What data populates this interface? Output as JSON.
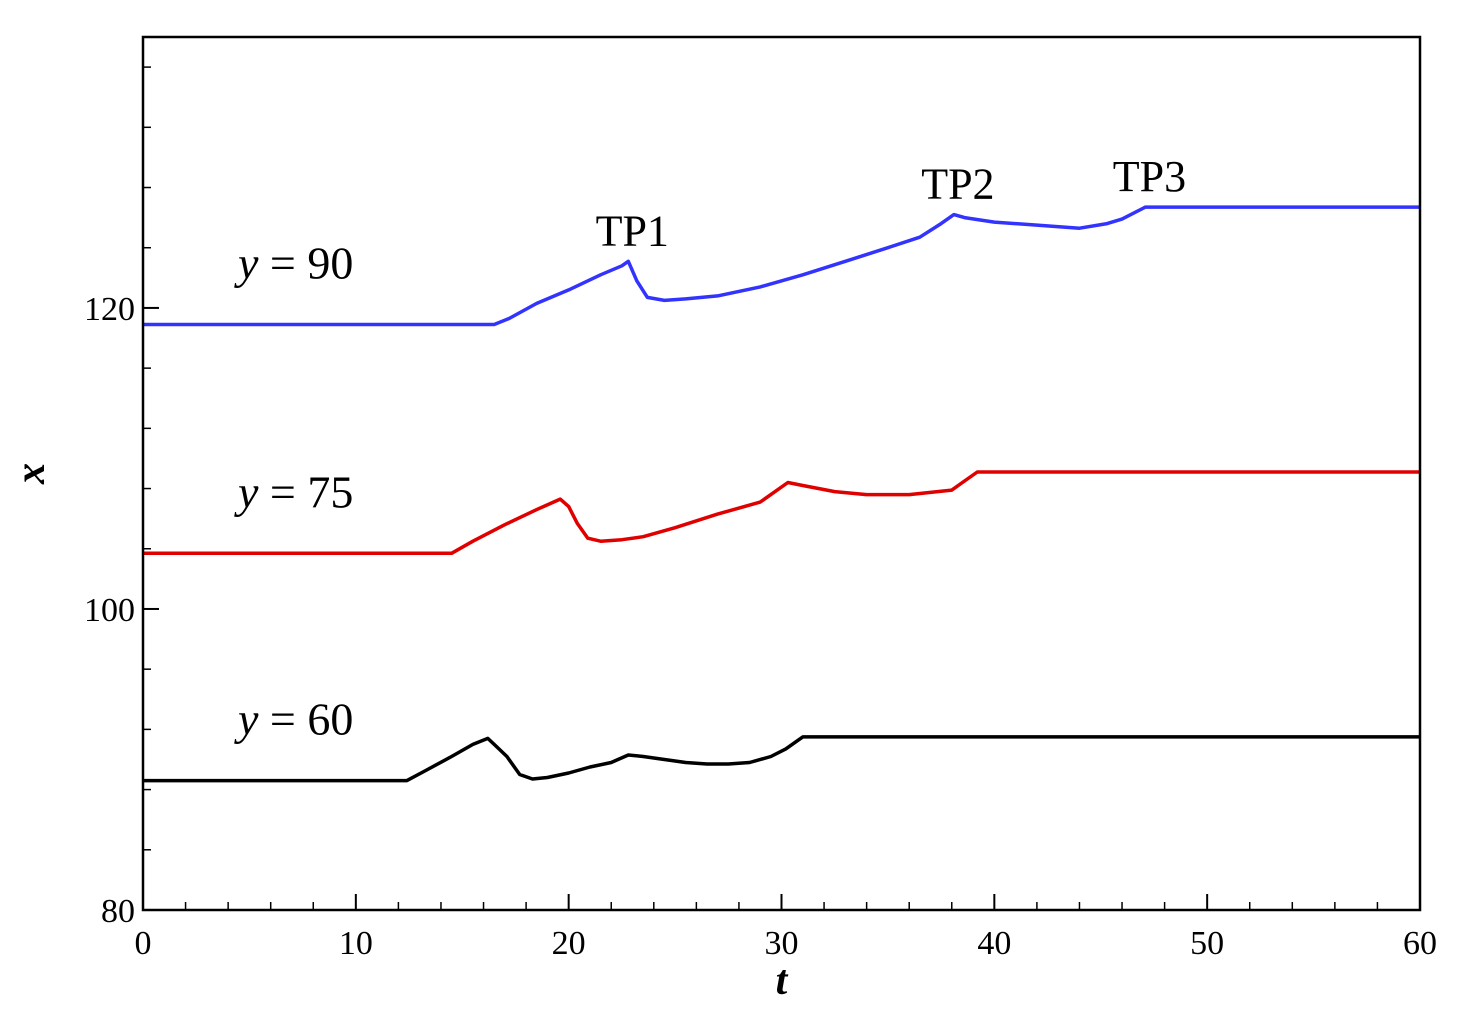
{
  "chart_data": {
    "type": "line",
    "title": "",
    "xlabel": "t",
    "ylabel": "x",
    "xlim": [
      0,
      60
    ],
    "ylim": [
      80,
      138
    ],
    "xticks": [
      0,
      10,
      20,
      30,
      40,
      50,
      60
    ],
    "xtick_labels": [
      "0",
      "10",
      "20",
      "30",
      "40",
      "50",
      "60"
    ],
    "yticks": [
      80,
      100,
      120
    ],
    "ytick_labels": [
      "80",
      "100",
      "120"
    ],
    "grid": false,
    "legend": "none",
    "series": [
      {
        "name": "y = 60",
        "label_var": "y",
        "label_eq": "= 60",
        "color": "#000000",
        "x": [
          0,
          12.4,
          13.2,
          14.5,
          15.5,
          16.2,
          16.5,
          17.1,
          17.7,
          18.3,
          19.0,
          20.0,
          21.0,
          22.0,
          22.8,
          23.5,
          24.5,
          25.5,
          26.5,
          27.5,
          28.5,
          29.5,
          30.2,
          30.8,
          31.0,
          60
        ],
        "y": [
          88.6,
          88.6,
          89.2,
          90.2,
          91.0,
          91.4,
          91.0,
          90.2,
          89.0,
          88.7,
          88.8,
          89.1,
          89.5,
          89.8,
          90.3,
          90.2,
          90.0,
          89.8,
          89.7,
          89.7,
          89.8,
          90.2,
          90.7,
          91.3,
          91.5,
          91.5
        ]
      },
      {
        "name": "y = 75",
        "label_var": "y",
        "label_eq": "= 75",
        "color": "#e00000",
        "x": [
          0,
          14.5,
          15.5,
          17.0,
          18.5,
          19.6,
          20.0,
          20.4,
          20.9,
          21.5,
          22.5,
          23.5,
          25.0,
          27.0,
          29.0,
          30.3,
          31.0,
          32.5,
          34.0,
          36.0,
          38.0,
          38.5,
          39.2,
          60
        ],
        "y": [
          103.7,
          103.7,
          104.5,
          105.6,
          106.6,
          107.3,
          106.8,
          105.7,
          104.7,
          104.5,
          104.6,
          104.8,
          105.4,
          106.3,
          107.1,
          108.4,
          108.2,
          107.8,
          107.6,
          107.6,
          107.9,
          108.4,
          109.1,
          109.1
        ]
      },
      {
        "name": "y = 90",
        "label_var": "y",
        "label_eq": "= 90",
        "color": "#3333ff",
        "x": [
          0,
          16.5,
          17.2,
          18.5,
          20.0,
          21.5,
          22.5,
          22.8,
          23.2,
          23.7,
          24.5,
          25.5,
          27.0,
          29.0,
          31.0,
          33.0,
          35.0,
          36.5,
          37.5,
          38.1,
          38.6,
          40.0,
          42.0,
          44.0,
          45.3,
          46.0,
          47.1,
          60
        ],
        "y": [
          118.9,
          118.9,
          119.3,
          120.3,
          121.2,
          122.2,
          122.8,
          123.1,
          121.8,
          120.7,
          120.5,
          120.6,
          120.8,
          121.4,
          122.2,
          123.1,
          124.0,
          124.7,
          125.6,
          126.2,
          126.0,
          125.7,
          125.5,
          125.3,
          125.6,
          125.9,
          126.7,
          126.7
        ]
      }
    ],
    "annotations": [
      {
        "text": "TP1",
        "series": "y = 90",
        "x": 22.8
      },
      {
        "text": "TP2",
        "series": "y = 90",
        "x": 38.1
      },
      {
        "text": "TP3",
        "series": "y = 90",
        "x": 47.1
      }
    ]
  }
}
